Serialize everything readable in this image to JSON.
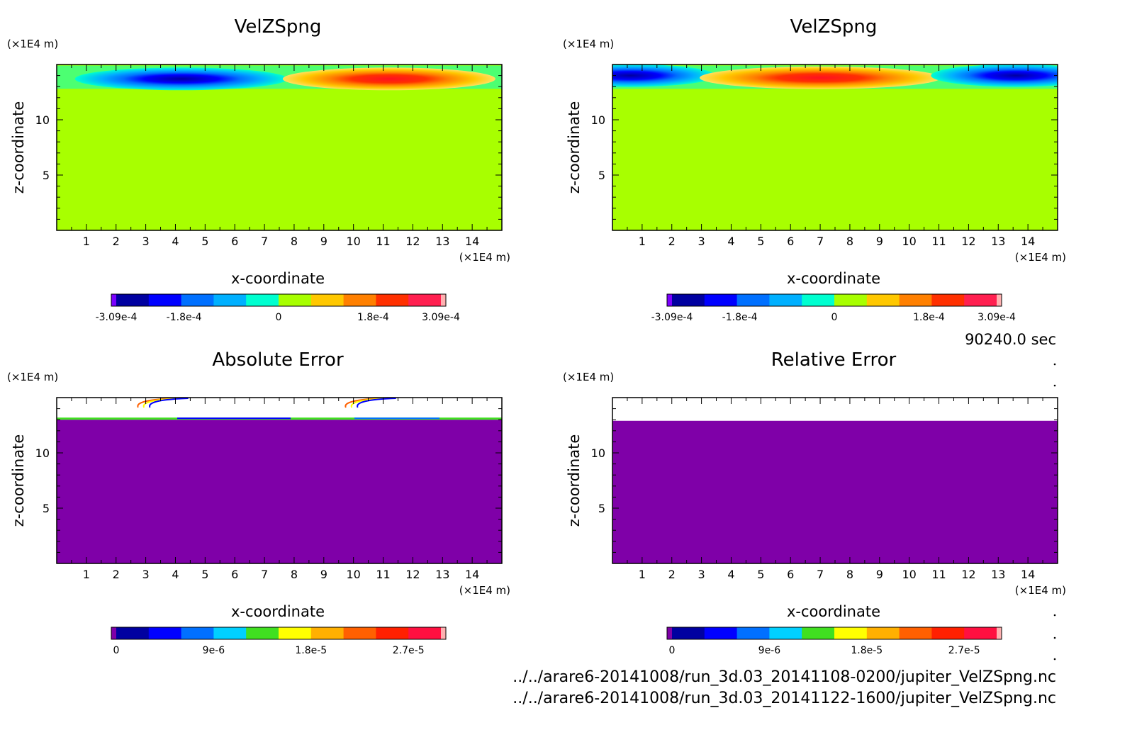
{
  "time_label": "90240.0 sec",
  "file_paths": [
    "../../arare6-20141008/run_3d.03_20141108-0200/jupiter_VelZSpng.nc",
    "../../arare6-20141008/run_3d.03_20141122-1600/jupiter_VelZSpng.nc"
  ],
  "colors": {
    "velocity_scale": [
      "#7b00ff",
      "#0000a0",
      "#0000ff",
      "#0070ff",
      "#00b0ff",
      "#00ffd0",
      "#a8ff00",
      "#ffc800",
      "#ff8000",
      "#ff3000",
      "#ff2050",
      "#ffb0b0"
    ],
    "error_scale": [
      "#7f00a8",
      "#0000a0",
      "#0000ff",
      "#0070ff",
      "#00d0ff",
      "#40e020",
      "#ffff00",
      "#ffb000",
      "#ff6000",
      "#ff2000",
      "#ff1040",
      "#ffb0b0"
    ]
  },
  "chart_data": [
    {
      "type": "heatmap",
      "title": "VelZSpng",
      "xlabel": "x-coordinate",
      "ylabel": "z-coordinate",
      "x_unit": "(×1E4 m)",
      "y_unit": "(×1E4 m)",
      "xticks": [
        "1",
        "2",
        "3",
        "4",
        "5",
        "6",
        "7",
        "8",
        "9",
        "10",
        "11",
        "12",
        "13",
        "14"
      ],
      "yticks": [
        "5",
        "10"
      ],
      "xlim": [
        0,
        15
      ],
      "ylim": [
        0,
        15
      ],
      "colorbar": {
        "ticks": [
          "-3.09e-4",
          "-1.8e-4",
          "0",
          "1.8e-4",
          "3.09e-4"
        ],
        "range": [
          -0.000309,
          0.000309
        ]
      },
      "structures": [
        {
          "kind": "negative_cell",
          "x_center": 4.2,
          "z_center": 13.7,
          "peak": -0.000309
        },
        {
          "kind": "positive_cell",
          "x_center": 11.2,
          "z_center": 13.7,
          "peak": 0.000309
        }
      ],
      "background_value": 0
    },
    {
      "type": "heatmap",
      "title": "VelZSpng",
      "xlabel": "x-coordinate",
      "ylabel": "z-coordinate",
      "x_unit": "(×1E4 m)",
      "y_unit": "(×1E4 m)",
      "xticks": [
        "1",
        "2",
        "3",
        "4",
        "5",
        "6",
        "7",
        "8",
        "9",
        "10",
        "11",
        "12",
        "13",
        "14"
      ],
      "yticks": [
        "5",
        "10"
      ],
      "xlim": [
        0,
        15
      ],
      "ylim": [
        0,
        15
      ],
      "colorbar": {
        "ticks": [
          "-3.09e-4",
          "-1.8e-4",
          "0",
          "1.8e-4",
          "3.09e-4"
        ],
        "range": [
          -0.000309,
          0.000309
        ]
      },
      "structures": [
        {
          "kind": "negative_cell",
          "x_center": 0.6,
          "z_center": 14.0,
          "peak": -0.000309
        },
        {
          "kind": "positive_cell",
          "x_center": 7.0,
          "z_center": 13.8,
          "peak": 0.000309
        },
        {
          "kind": "negative_cell",
          "x_center": 13.6,
          "z_center": 14.0,
          "peak": -0.000309
        }
      ],
      "background_value": 0
    },
    {
      "type": "heatmap",
      "title": "Absolute Error",
      "xlabel": "x-coordinate",
      "ylabel": "z-coordinate",
      "x_unit": "(×1E4 m)",
      "y_unit": "(×1E4 m)",
      "xticks": [
        "1",
        "2",
        "3",
        "4",
        "5",
        "6",
        "7",
        "8",
        "9",
        "10",
        "11",
        "12",
        "13",
        "14"
      ],
      "yticks": [
        "5",
        "10"
      ],
      "xlim": [
        0,
        15
      ],
      "ylim": [
        0,
        15
      ],
      "colorbar": {
        "ticks": [
          "0",
          "9e-6",
          "1.8e-5",
          "2.7e-5"
        ],
        "range": [
          0,
          3e-05
        ]
      },
      "filled_zmax": 13.0,
      "background_value": 0
    },
    {
      "type": "heatmap",
      "title": "Relative Error",
      "xlabel": "x-coordinate",
      "ylabel": "z-coordinate",
      "x_unit": "(×1E4 m)",
      "y_unit": "(×1E4 m)",
      "xticks": [
        "1",
        "2",
        "3",
        "4",
        "5",
        "6",
        "7",
        "8",
        "9",
        "10",
        "11",
        "12",
        "13",
        "14"
      ],
      "yticks": [
        "5",
        "10"
      ],
      "xlim": [
        0,
        15
      ],
      "ylim": [
        0,
        15
      ],
      "colorbar": {
        "ticks": [
          "0",
          "9e-6",
          "1.8e-5",
          "2.7e-5"
        ],
        "range": [
          0,
          3e-05
        ]
      },
      "filled_zmax": 12.9,
      "background_value": 0
    }
  ]
}
